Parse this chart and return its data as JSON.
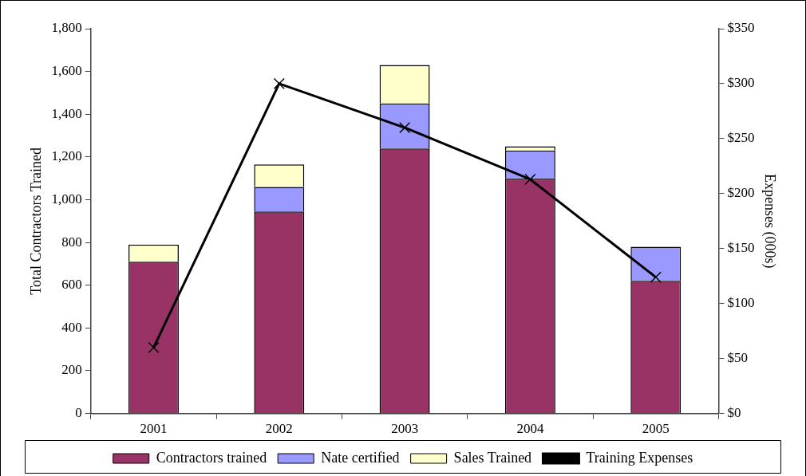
{
  "chart_data": {
    "type": "bar",
    "stacked": true,
    "ylabel": "Total Contractors Trained",
    "y2label": "Expenses (000s)",
    "categories": [
      "2001",
      "2002",
      "2003",
      "2004",
      "2005"
    ],
    "series": [
      {
        "name": "Contractors trained",
        "color": "#993366",
        "values": [
          710,
          945,
          1240,
          1100,
          620
        ]
      },
      {
        "name": "Nate certified",
        "color": "#9999ff",
        "values": [
          0,
          115,
          210,
          130,
          160
        ]
      },
      {
        "name": "Sales Trained",
        "color": "#ffffcc",
        "values": [
          80,
          105,
          180,
          20,
          0
        ]
      },
      {
        "name": "Training Expenses",
        "type": "line",
        "axis": "y2",
        "color": "#000000",
        "marker": "cross",
        "values": [
          60,
          300,
          260,
          213,
          124
        ]
      }
    ],
    "ylim": [
      0,
      1800
    ],
    "yticks": [
      {
        "value": 0,
        "label": "0"
      },
      {
        "value": 200,
        "label": "200"
      },
      {
        "value": 400,
        "label": "400"
      },
      {
        "value": 600,
        "label": "600"
      },
      {
        "value": 800,
        "label": "800"
      },
      {
        "value": 1000,
        "label": "1,000"
      },
      {
        "value": 1200,
        "label": "1,200"
      },
      {
        "value": 1400,
        "label": "1,400"
      },
      {
        "value": 1600,
        "label": "1,600"
      },
      {
        "value": 1800,
        "label": "1,800"
      }
    ],
    "y2lim": [
      0,
      350
    ],
    "y2ticks": [
      {
        "value": 0,
        "label": "$0"
      },
      {
        "value": 50,
        "label": "$50"
      },
      {
        "value": 100,
        "label": "$100"
      },
      {
        "value": 150,
        "label": "$150"
      },
      {
        "value": 200,
        "label": "$200"
      },
      {
        "value": 250,
        "label": "$250"
      },
      {
        "value": 300,
        "label": "$300"
      },
      {
        "value": 350,
        "label": "$350"
      }
    ],
    "grid": false,
    "legend": "bottom"
  }
}
